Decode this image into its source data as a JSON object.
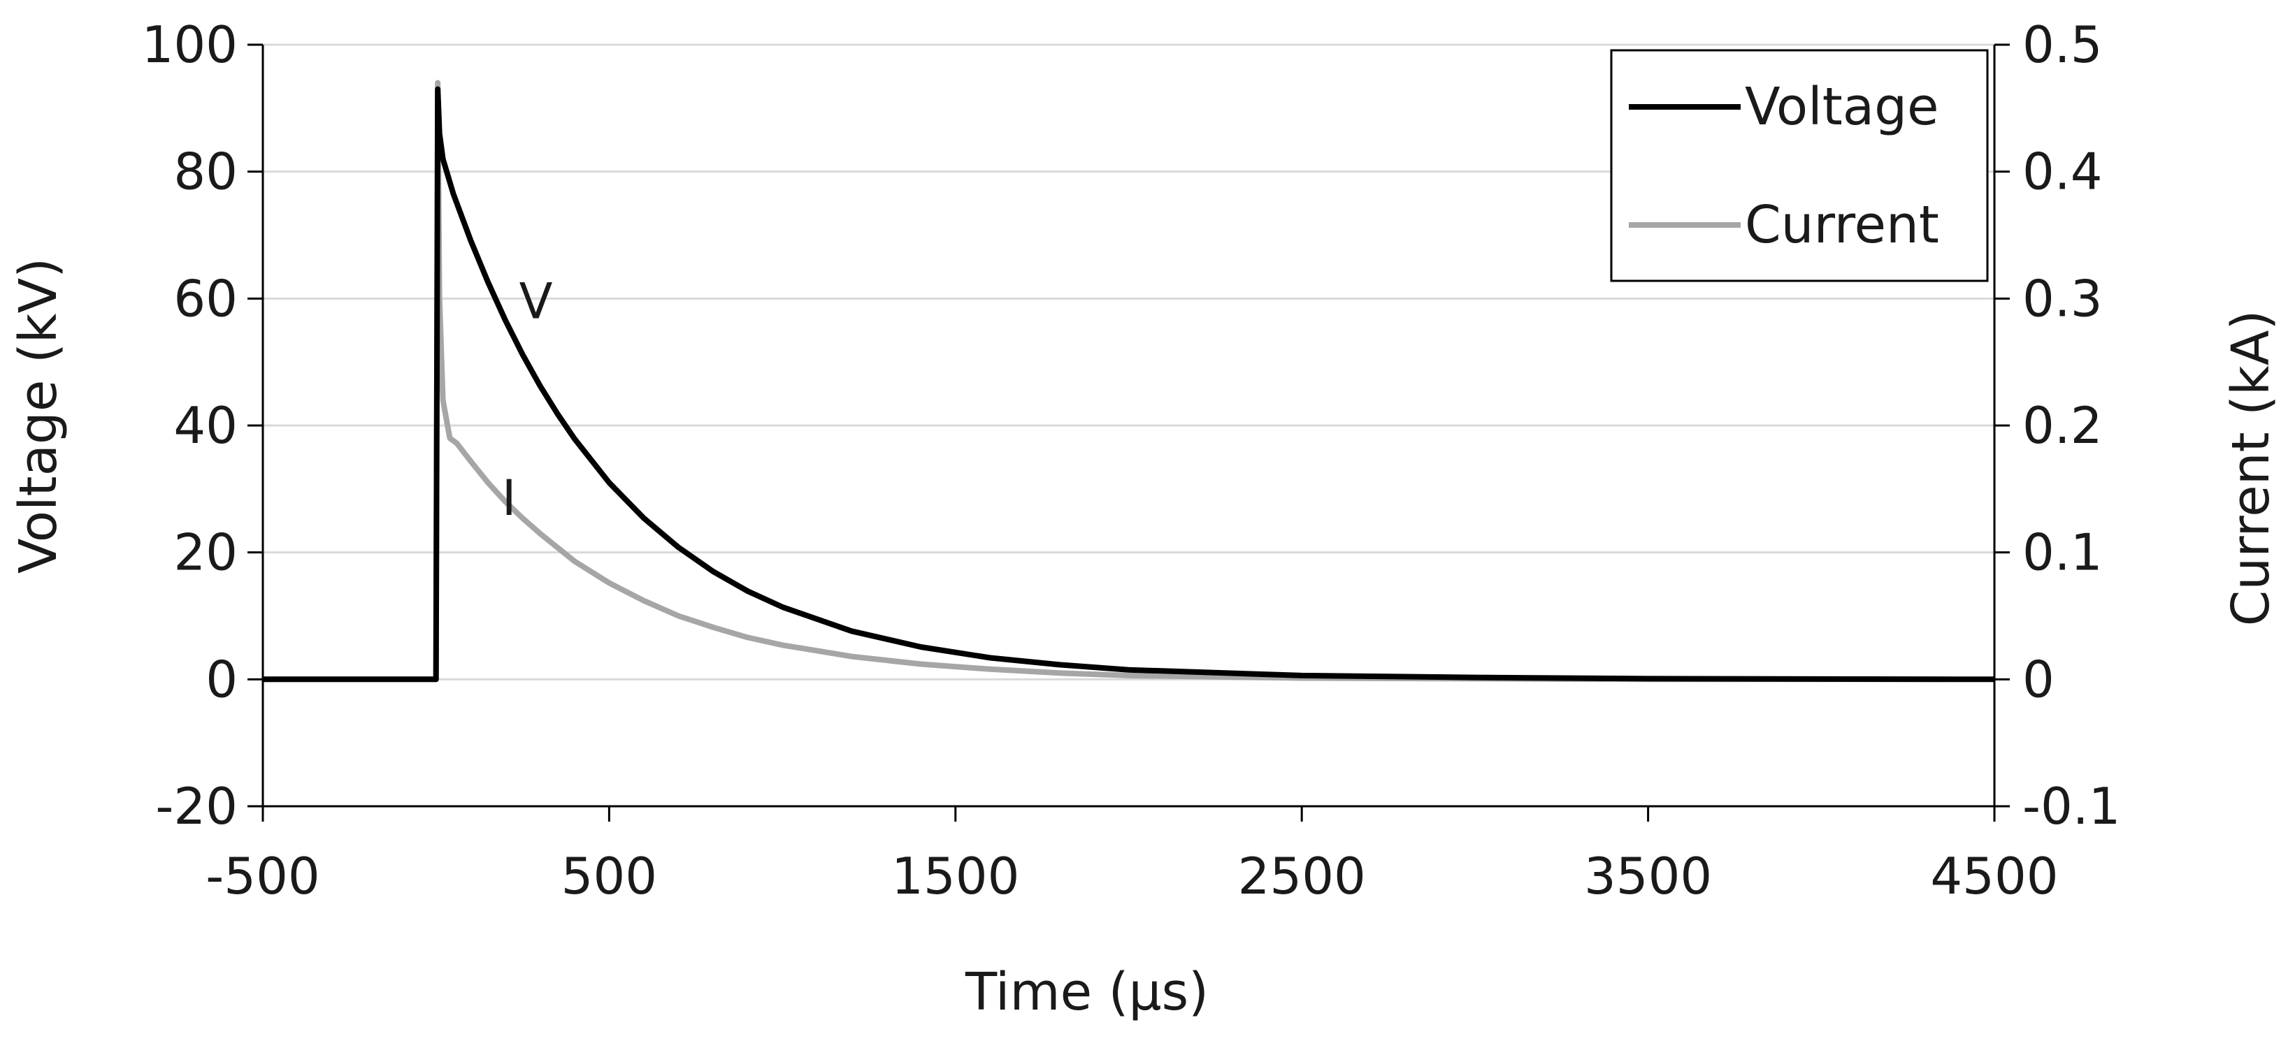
{
  "chart_data": {
    "type": "line",
    "title": "",
    "xlabel": "Time (µs)",
    "ylabel": "Voltage (kV)",
    "y2label": "Current (kA)",
    "xlim": [
      -500,
      4500
    ],
    "ylim": [
      -20,
      100
    ],
    "y2lim": [
      -0.1,
      0.5
    ],
    "xticks": [
      "-500",
      "500",
      "1500",
      "2500",
      "3500",
      "4500"
    ],
    "yticks": [
      "-20",
      "0",
      "20",
      "40",
      "60",
      "80",
      "100"
    ],
    "y2ticks": [
      "-0.1",
      "0",
      "0.1",
      "0.2",
      "0.3",
      "0.4",
      "0.5"
    ],
    "grid": true,
    "legend": "top-right",
    "series": [
      {
        "name": "Voltage",
        "axis": "left",
        "color": "#000000",
        "label": "V",
        "x": [
          -500,
          -10,
          0,
          5,
          10,
          20,
          50,
          100,
          150,
          200,
          250,
          300,
          350,
          400,
          500,
          600,
          700,
          800,
          900,
          1000,
          1200,
          1400,
          1600,
          1800,
          2000,
          2500,
          3000,
          3500,
          4000,
          4500
        ],
        "y": [
          0,
          0,
          0,
          93,
          86,
          82,
          76.5,
          69.2,
          62.6,
          56.6,
          51.2,
          46.3,
          41.9,
          37.9,
          31.0,
          25.4,
          20.8,
          17.0,
          13.9,
          11.4,
          7.6,
          5.1,
          3.4,
          2.3,
          1.5,
          0.6,
          0.3,
          0.1,
          0.05,
          0
        ]
      },
      {
        "name": "Current",
        "axis": "right",
        "color": "#a6a6a6",
        "label": "I",
        "x": [
          -500,
          -10,
          0,
          5,
          10,
          20,
          40,
          60,
          100,
          150,
          200,
          250,
          300,
          400,
          500,
          600,
          700,
          800,
          900,
          1000,
          1200,
          1400,
          1600,
          1800,
          2000,
          2500,
          3000,
          3500,
          4000,
          4350
        ],
        "y": [
          0,
          0,
          0,
          0.47,
          0.3,
          0.22,
          0.19,
          0.186,
          0.172,
          0.155,
          0.14,
          0.127,
          0.115,
          0.093,
          0.076,
          0.062,
          0.05,
          0.041,
          0.033,
          0.027,
          0.018,
          0.012,
          0.008,
          0.005,
          0.003,
          0.001,
          0.0005,
          0,
          0,
          0
        ]
      }
    ]
  }
}
